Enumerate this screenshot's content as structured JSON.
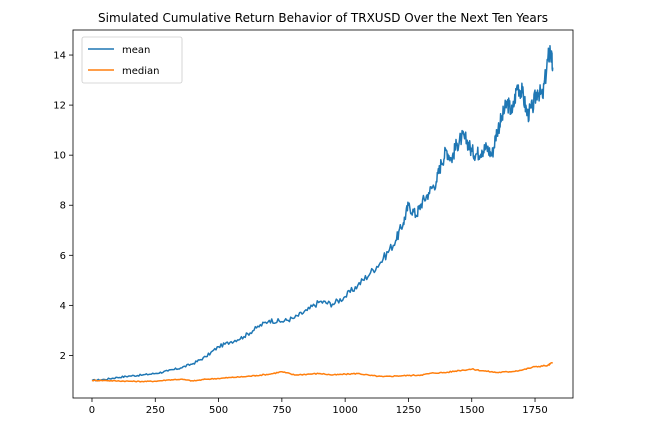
{
  "chart_data": {
    "type": "line",
    "title": "Simulated Cumulative Return Behavior of TRXUSD Over the Next Ten Years",
    "xlabel": "",
    "ylabel": "",
    "xlim": [
      -75,
      1900
    ],
    "ylim": [
      0.3,
      15.0
    ],
    "xticks": [
      0,
      250,
      500,
      750,
      1000,
      1250,
      1500,
      1750
    ],
    "yticks": [
      2,
      4,
      6,
      8,
      10,
      12,
      14
    ],
    "legend_position": "top-left",
    "series": [
      {
        "name": "mean",
        "color": "#1f77b4",
        "x": [
          0,
          50,
          100,
          150,
          200,
          250,
          300,
          350,
          400,
          450,
          500,
          550,
          600,
          650,
          700,
          750,
          800,
          850,
          900,
          950,
          1000,
          1050,
          1100,
          1150,
          1200,
          1230,
          1250,
          1280,
          1300,
          1330,
          1360,
          1380,
          1400,
          1420,
          1440,
          1460,
          1480,
          1500,
          1520,
          1540,
          1560,
          1580,
          1600,
          1620,
          1640,
          1660,
          1680,
          1700,
          1720,
          1740,
          1760,
          1780,
          1800,
          1810,
          1820
        ],
        "values": [
          1.0,
          1.04,
          1.12,
          1.18,
          1.22,
          1.28,
          1.38,
          1.5,
          1.68,
          1.95,
          2.35,
          2.55,
          2.75,
          3.1,
          3.4,
          3.35,
          3.5,
          3.8,
          4.15,
          4.05,
          4.35,
          4.8,
          5.3,
          5.85,
          6.6,
          7.3,
          8.0,
          7.6,
          8.05,
          8.5,
          8.95,
          9.7,
          10.2,
          9.85,
          10.4,
          10.7,
          10.6,
          10.15,
          10.05,
          10.2,
          10.3,
          10.0,
          11.0,
          11.5,
          12.1,
          11.7,
          12.8,
          12.5,
          11.6,
          11.9,
          12.6,
          12.3,
          13.8,
          14.2,
          13.5
        ]
      },
      {
        "name": "median",
        "color": "#ff7f0e",
        "x": [
          0,
          50,
          100,
          150,
          200,
          250,
          300,
          350,
          400,
          450,
          500,
          550,
          600,
          650,
          700,
          750,
          800,
          850,
          900,
          950,
          1000,
          1050,
          1100,
          1150,
          1200,
          1250,
          1300,
          1350,
          1400,
          1450,
          1500,
          1550,
          1600,
          1650,
          1700,
          1750,
          1800,
          1820
        ],
        "values": [
          1.0,
          1.0,
          0.98,
          0.97,
          0.96,
          0.97,
          1.02,
          1.05,
          0.98,
          1.05,
          1.08,
          1.12,
          1.15,
          1.2,
          1.25,
          1.35,
          1.22,
          1.25,
          1.28,
          1.22,
          1.25,
          1.28,
          1.2,
          1.15,
          1.18,
          1.2,
          1.22,
          1.3,
          1.32,
          1.4,
          1.45,
          1.38,
          1.32,
          1.35,
          1.42,
          1.55,
          1.6,
          1.72
        ]
      }
    ]
  }
}
